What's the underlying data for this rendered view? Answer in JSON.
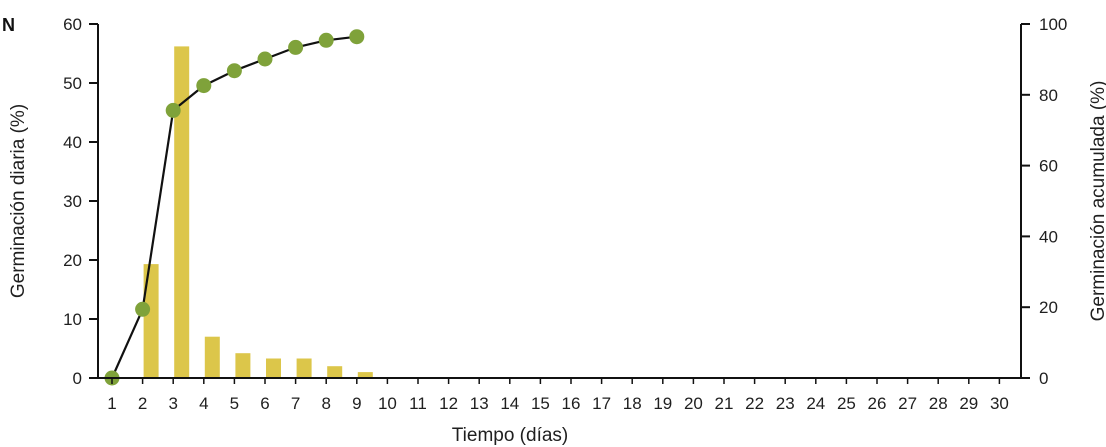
{
  "panel_label": "N",
  "colors": {
    "bars": "#DCC64A",
    "line": "#111111",
    "markers": "#7FA23A",
    "axis": "#111111"
  },
  "chart_data": {
    "type": "bar",
    "title": "",
    "xlabel": "Tiempo (días)",
    "ylabel": "Germinación diaria (%)",
    "y2label": "Germinación acumulada (%)",
    "categories": [
      "1",
      "2",
      "3",
      "4",
      "5",
      "6",
      "7",
      "8",
      "9",
      "10",
      "11",
      "12",
      "13",
      "14",
      "15",
      "16",
      "17",
      "18",
      "19",
      "20",
      "21",
      "22",
      "23",
      "24",
      "25",
      "26",
      "27",
      "28",
      "29",
      "30"
    ],
    "ylim": [
      0,
      60
    ],
    "y2lim": [
      0,
      100
    ],
    "yticks": [
      0,
      10,
      20,
      30,
      40,
      50,
      60
    ],
    "y2ticks": [
      0,
      20,
      40,
      60,
      80,
      100
    ],
    "grid": false,
    "series": [
      {
        "type": "bar",
        "axis": "left",
        "values": [
          0,
          19.3,
          56.2,
          7.0,
          4.2,
          3.3,
          3.3,
          2.0,
          1.0,
          0,
          0,
          0,
          0,
          0,
          0,
          0,
          0,
          0,
          0,
          0,
          0,
          0,
          0,
          0,
          0,
          0,
          0,
          0,
          0,
          0
        ]
      },
      {
        "type": "line",
        "axis": "right",
        "x": [
          "1",
          "2",
          "3",
          "4",
          "5",
          "6",
          "7",
          "8",
          "9"
        ],
        "values": [
          0,
          19.4,
          75.6,
          82.6,
          86.8,
          90.1,
          93.4,
          95.4,
          96.4
        ]
      }
    ]
  }
}
